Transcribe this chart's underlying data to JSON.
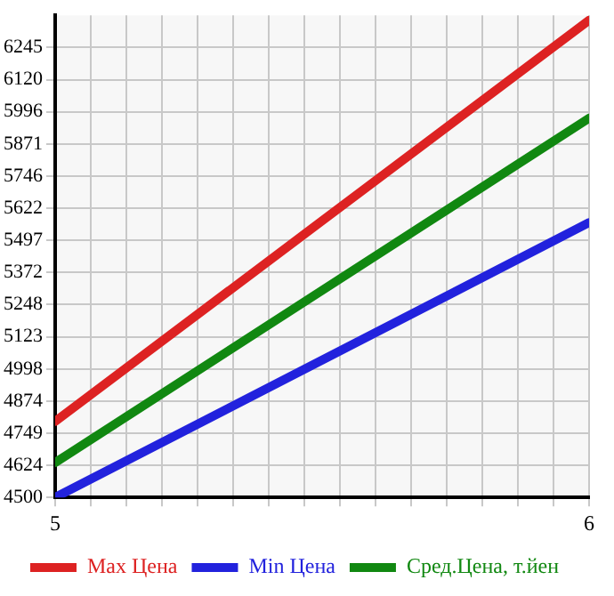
{
  "chart_data": {
    "type": "line",
    "x": [
      5,
      6
    ],
    "series": [
      {
        "name": "Max Цена",
        "color": "#dd2222",
        "values": [
          4795,
          6351
        ]
      },
      {
        "name": "Min Цена",
        "color": "#2222dd",
        "values": [
          4500,
          5566
        ]
      },
      {
        "name": "Сред.Цена, т.йен",
        "color": "#118811",
        "values": [
          4635,
          5971
        ]
      }
    ],
    "xlim": [
      5,
      6
    ],
    "xticks": [
      5,
      {
        "value": 5.0667,
        "label": null
      },
      {
        "value": 5.1333,
        "label": null
      },
      {
        "value": 5.2,
        "label": null
      },
      {
        "value": 5.2667,
        "label": null
      },
      {
        "value": 5.3333,
        "label": null
      },
      {
        "value": 5.4,
        "label": null
      },
      {
        "value": 5.4667,
        "label": null
      },
      {
        "value": 5.5333,
        "label": null
      },
      {
        "value": 5.6,
        "label": null
      },
      {
        "value": 5.6667,
        "label": null
      },
      {
        "value": 5.7333,
        "label": null
      },
      {
        "value": 5.8,
        "label": null
      },
      {
        "value": 5.8667,
        "label": null
      },
      {
        "value": 5.9333,
        "label": null
      },
      6
    ],
    "ylim": [
      4500,
      6370
    ],
    "yticks": [
      4500,
      4624,
      4749,
      4874,
      4998,
      5123,
      5248,
      5372,
      5497,
      5622,
      5746,
      5871,
      5996,
      6120,
      6245
    ],
    "grid": true,
    "legend": "bottom",
    "marker": "none",
    "line_style": "solid"
  }
}
